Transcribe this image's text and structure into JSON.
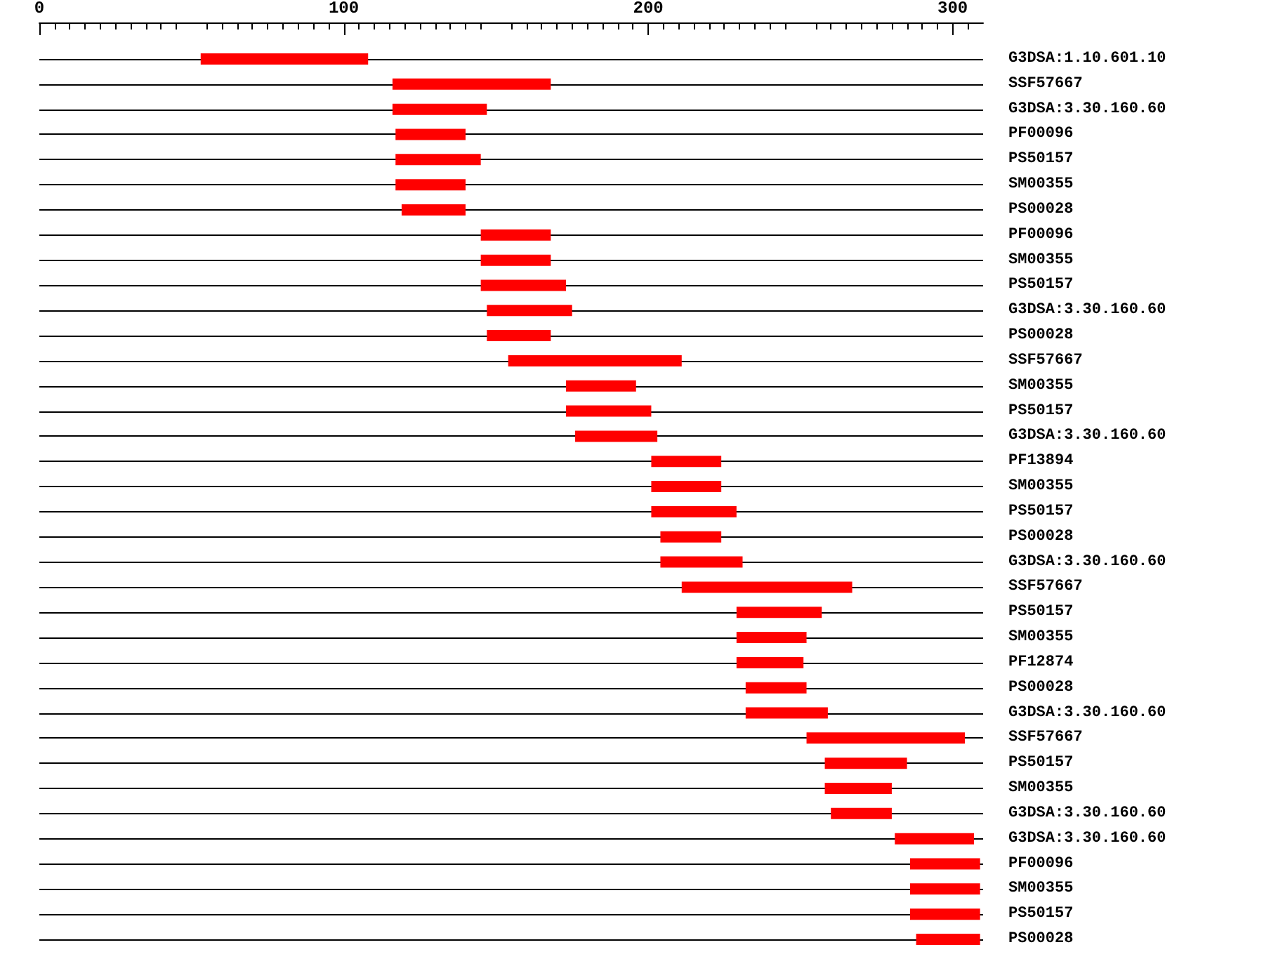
{
  "chart_data": {
    "type": "bar",
    "orientation": "horizontal",
    "categories": [
      "G3DSA:1.10.601.10",
      "SSF57667",
      "G3DSA:3.30.160.60",
      "PF00096",
      "PS50157",
      "SM00355",
      "PS00028",
      "PF00096",
      "SM00355",
      "PS50157",
      "G3DSA:3.30.160.60",
      "PS00028",
      "SSF57667",
      "SM00355",
      "PS50157",
      "G3DSA:3.30.160.60",
      "PF13894",
      "SM00355",
      "PS50157",
      "PS00028",
      "G3DSA:3.30.160.60",
      "SSF57667",
      "PS50157",
      "SM00355",
      "PF12874",
      "PS00028",
      "G3DSA:3.30.160.60",
      "SSF57667",
      "PS50157",
      "SM00355",
      "G3DSA:3.30.160.60",
      "G3DSA:3.30.160.60",
      "PF00096",
      "SM00355",
      "PS50157",
      "PS00028"
    ],
    "base": [
      53,
      116,
      116,
      117,
      117,
      117,
      119,
      145,
      145,
      145,
      147,
      147,
      154,
      173,
      173,
      176,
      201,
      201,
      201,
      204,
      204,
      211,
      229,
      229,
      229,
      232,
      232,
      252,
      258,
      258,
      260,
      281,
      286,
      286,
      286,
      288
    ],
    "values": [
      55,
      52,
      31,
      23,
      28,
      23,
      21,
      23,
      23,
      28,
      28,
      21,
      57,
      23,
      28,
      27,
      23,
      23,
      28,
      20,
      27,
      56,
      28,
      23,
      22,
      20,
      27,
      52,
      27,
      22,
      20,
      26,
      23,
      23,
      23,
      21
    ],
    "color": "#ff0000",
    "xlim": [
      0,
      310
    ],
    "xticks": [
      0,
      100,
      200,
      300
    ],
    "grid": "y"
  }
}
